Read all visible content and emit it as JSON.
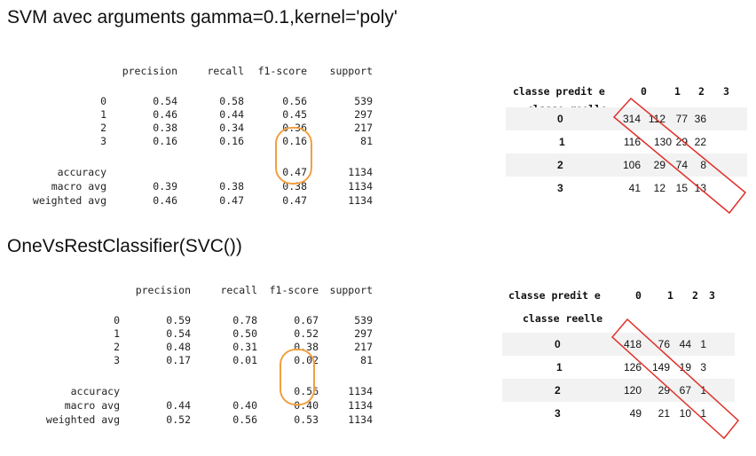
{
  "section1": {
    "title": "SVM avec arguments gamma=0.1,kernel='poly'",
    "report": {
      "headers": [
        "precision",
        "recall",
        "f1-score",
        "support"
      ],
      "rows": [
        {
          "label": "0",
          "precision": "0.54",
          "recall": "0.58",
          "f1": "0.56",
          "support": "539"
        },
        {
          "label": "1",
          "precision": "0.46",
          "recall": "0.44",
          "f1": "0.45",
          "support": "297"
        },
        {
          "label": "2",
          "precision": "0.38",
          "recall": "0.34",
          "f1": "0.36",
          "support": "217"
        },
        {
          "label": "3",
          "precision": "0.16",
          "recall": "0.16",
          "f1": "0.16",
          "support": "81"
        }
      ],
      "summary": [
        {
          "label": "accuracy",
          "precision": "",
          "recall": "",
          "f1": "0.47",
          "support": "1134"
        },
        {
          "label": "macro avg",
          "precision": "0.39",
          "recall": "0.38",
          "f1": "0.38",
          "support": "1134"
        },
        {
          "label": "weighted avg",
          "precision": "0.46",
          "recall": "0.47",
          "f1": "0.47",
          "support": "1134"
        }
      ]
    },
    "matrix": {
      "col_header": "classe predit e",
      "row_header": "classe reelle",
      "cols": [
        "0",
        "1",
        "2",
        "3"
      ],
      "rows": [
        {
          "label": "0",
          "values": [
            "314",
            "112",
            "77",
            "36"
          ]
        },
        {
          "label": "1",
          "values": [
            "116",
            "130",
            "29",
            "22"
          ]
        },
        {
          "label": "2",
          "values": [
            "106",
            "29",
            "74",
            "8"
          ]
        },
        {
          "label": "3",
          "values": [
            "41",
            "12",
            "15",
            "13"
          ]
        }
      ]
    }
  },
  "section2": {
    "title": "OneVsRestClassifier(SVC())",
    "report": {
      "headers": [
        "precision",
        "recall",
        "f1-score",
        "support"
      ],
      "rows": [
        {
          "label": "0",
          "precision": "0.59",
          "recall": "0.78",
          "f1": "0.67",
          "support": "539"
        },
        {
          "label": "1",
          "precision": "0.54",
          "recall": "0.50",
          "f1": "0.52",
          "support": "297"
        },
        {
          "label": "2",
          "precision": "0.48",
          "recall": "0.31",
          "f1": "0.38",
          "support": "217"
        },
        {
          "label": "3",
          "precision": "0.17",
          "recall": "0.01",
          "f1": "0.02",
          "support": "81"
        }
      ],
      "summary": [
        {
          "label": "accuracy",
          "precision": "",
          "recall": "",
          "f1": "0.56",
          "support": "1134"
        },
        {
          "label": "macro avg",
          "precision": "0.44",
          "recall": "0.40",
          "f1": "0.40",
          "support": "1134"
        },
        {
          "label": "weighted avg",
          "precision": "0.52",
          "recall": "0.56",
          "f1": "0.53",
          "support": "1134"
        }
      ]
    },
    "matrix": {
      "col_header": "classe predit e",
      "row_header": "classe reelle",
      "cols": [
        "0",
        "1",
        "2",
        "3"
      ],
      "rows": [
        {
          "label": "0",
          "values": [
            "418",
            "76",
            "44",
            "1"
          ]
        },
        {
          "label": "1",
          "values": [
            "126",
            "149",
            "19",
            "3"
          ]
        },
        {
          "label": "2",
          "values": [
            "120",
            "29",
            "67",
            "1"
          ]
        },
        {
          "label": "3",
          "values": [
            "49",
            "21",
            "10",
            "1"
          ]
        }
      ]
    }
  },
  "colors": {
    "highlight_ellipse": "#f0a040",
    "diagonal_box": "#e0312b",
    "shaded_row": "#f2f2f2"
  }
}
